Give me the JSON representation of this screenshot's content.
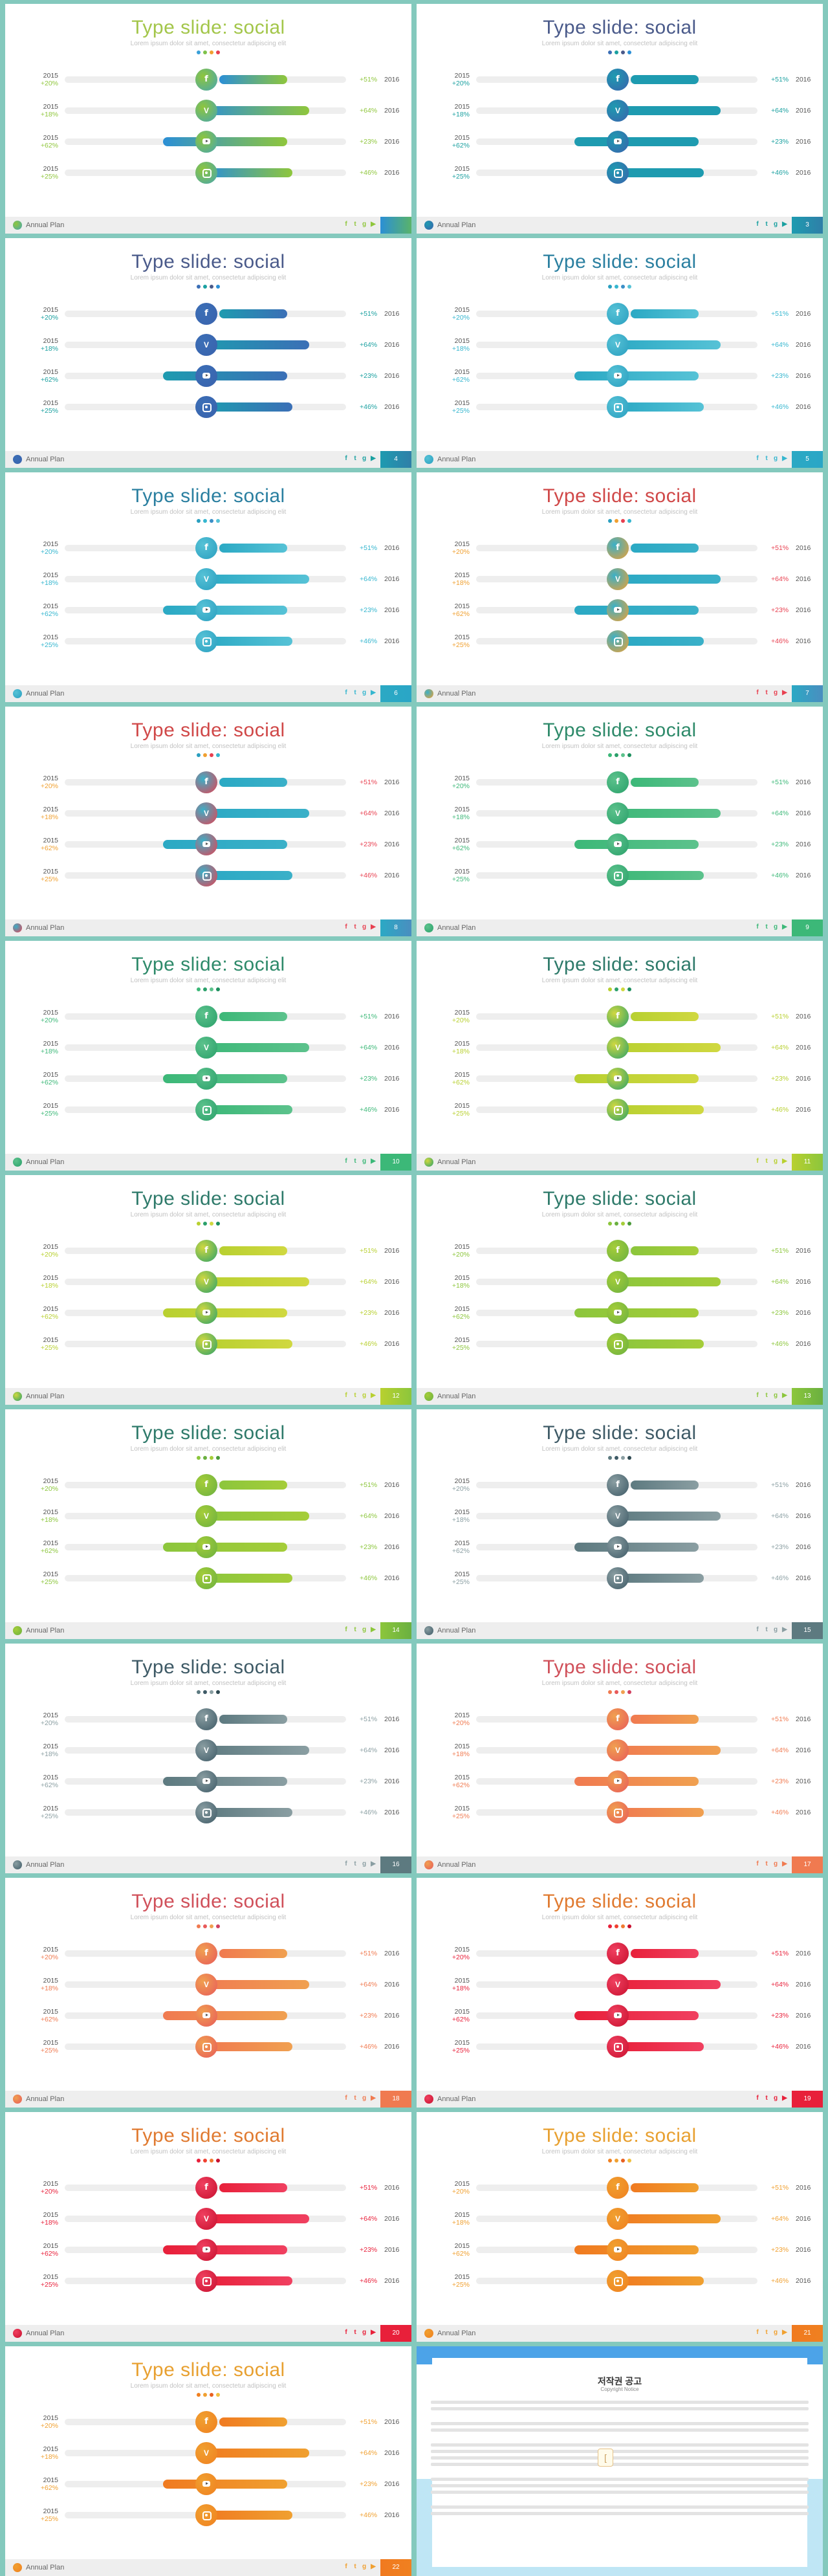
{
  "title": "Type slide: social",
  "subtitle": "Lorem ipsum dolor sit amet, consectetur adipiscing elit",
  "footer_name": "Annual Plan",
  "year_left": "2015",
  "year_right": "2016",
  "rows": [
    {
      "icon": "facebook-icon",
      "glyph": "f",
      "cls": "fb",
      "left_pct": "+20%",
      "right_pct": "+51%",
      "bar_start": 0.55,
      "bar_end": 0.79
    },
    {
      "icon": "vine-icon",
      "glyph": "V",
      "cls": "vn",
      "left_pct": "+18%",
      "right_pct": "+64%",
      "bar_start": 0.48,
      "bar_end": 0.87
    },
    {
      "icon": "youtube-icon",
      "glyph": "",
      "cls": "yt",
      "left_pct": "+62%",
      "right_pct": "+23%",
      "bar_start": 0.35,
      "bar_end": 0.79
    },
    {
      "icon": "instagram-icon",
      "glyph": "",
      "cls": "ig",
      "left_pct": "+25%",
      "right_pct": "+46%",
      "bar_start": 0.5,
      "bar_end": 0.81
    }
  ],
  "footer_icons": [
    {
      "name": "facebook-icon",
      "glyph": "f"
    },
    {
      "name": "twitter-icon",
      "glyph": "t"
    },
    {
      "name": "google-plus-icon",
      "glyph": "g"
    },
    {
      "name": "youtube-icon",
      "glyph": "▶"
    }
  ],
  "slides": [
    {
      "page": "",
      "title_color": "#a3c64a",
      "dots": [
        "#3aa0d8",
        "#7ec24a",
        "#f0a030",
        "#e84050"
      ],
      "bar_a": "#2b8fd6",
      "bar_b": "#8fc63c",
      "circ": "#46a6b0",
      "pct_l": "#8fc63c",
      "pct_r": "#8fc63c",
      "accent": "#59b36a"
    },
    {
      "page": "3",
      "title_color": "#4a5a8a",
      "dots": [
        "#3b6fb6",
        "#1aa0a0",
        "#4a5a8a",
        "#2b8fd6"
      ],
      "bar_a": "#1e9bb0",
      "bar_b": "#1e9bb0",
      "circ": "#3a62ad",
      "pct_l": "#1aa0a0",
      "pct_r": "#1aa0a0",
      "accent": "#2f7fa8"
    },
    {
      "page": "4",
      "title_color": "#4a5a8a",
      "dots": [
        "#3b6fb6",
        "#1aa0a0",
        "#4a5a8a",
        "#2b8fd6"
      ],
      "bar_a": "#1e9bb0",
      "bar_b": "#3b6fb6",
      "circ": "#3a62ad",
      "pct_l": "#1aa0a0",
      "pct_r": "#1aa0a0",
      "accent": "#2f7fa8"
    },
    {
      "page": "5",
      "title_color": "#2a7fa0",
      "dots": [
        "#2a9fc0",
        "#35b6cf",
        "#3b8fc7",
        "#56c2d6"
      ],
      "bar_a": "#2ba9c4",
      "bar_b": "#56c2d6",
      "circ": "#2a9fc0",
      "pct_l": "#35b6cf",
      "pct_r": "#35b6cf",
      "accent": "#2aa6c6"
    },
    {
      "page": "6",
      "title_color": "#2a7fa0",
      "dots": [
        "#2a9fc0",
        "#35b6cf",
        "#3b8fc7",
        "#56c2d6"
      ],
      "bar_a": "#2ba9c4",
      "bar_b": "#56c2d6",
      "circ": "#2a9fc0",
      "pct_l": "#35b6cf",
      "pct_r": "#35b6cf",
      "accent": "#2aa6c6"
    },
    {
      "page": "7",
      "title_color": "#d04848",
      "dots": [
        "#2a9fc0",
        "#f0a030",
        "#e84050",
        "#35b6cf"
      ],
      "bar_a": "#2ba9c4",
      "bar_b": "#3ab0c8",
      "circ": "#f0a030",
      "pct_l": "#f0a030",
      "pct_r": "#e84050",
      "accent": "#4a8ec0"
    },
    {
      "page": "8",
      "title_color": "#d04848",
      "dots": [
        "#2a9fc0",
        "#f0a030",
        "#e84050",
        "#35b6cf"
      ],
      "bar_a": "#2ba9c4",
      "bar_b": "#3ab0c8",
      "circ": "#e84050",
      "pct_l": "#f0a030",
      "pct_r": "#e84050",
      "accent": "#4a8ec0"
    },
    {
      "page": "9",
      "title_color": "#2e8a6a",
      "dots": [
        "#3cb878",
        "#2aa06a",
        "#5cc28c",
        "#1d8f5e"
      ],
      "bar_a": "#3cb878",
      "bar_b": "#5cc28c",
      "circ": "#2aa06a",
      "pct_l": "#3cb878",
      "pct_r": "#3cb878",
      "accent": "#3cb878"
    },
    {
      "page": "10",
      "title_color": "#2e8a6a",
      "dots": [
        "#3cb878",
        "#2aa06a",
        "#5cc28c",
        "#1d8f5e"
      ],
      "bar_a": "#3cb878",
      "bar_b": "#5cc28c",
      "circ": "#2aa06a",
      "pct_l": "#3cb878",
      "pct_r": "#3cb878",
      "accent": "#3cb878"
    },
    {
      "page": "11",
      "title_color": "#2e7a6a",
      "dots": [
        "#b8d030",
        "#2aa06a",
        "#d0d840",
        "#1d8f5e"
      ],
      "bar_a": "#b8d030",
      "bar_b": "#d0d840",
      "circ": "#2aa06a",
      "pct_l": "#b8d030",
      "pct_r": "#b8d030",
      "accent": "#8cc63c"
    },
    {
      "page": "12",
      "title_color": "#2e7a6a",
      "dots": [
        "#b8d030",
        "#2aa06a",
        "#d0d840",
        "#1d8f5e"
      ],
      "bar_a": "#b8d030",
      "bar_b": "#d0d840",
      "circ": "#2aa06a",
      "pct_l": "#b8d030",
      "pct_r": "#b8d030",
      "accent": "#8cc63c"
    },
    {
      "page": "13",
      "title_color": "#2e7a6a",
      "dots": [
        "#8cc63c",
        "#6ab040",
        "#a5cd39",
        "#4a9a3a"
      ],
      "bar_a": "#8cc63c",
      "bar_b": "#a5cd39",
      "circ": "#6ab040",
      "pct_l": "#8cc63c",
      "pct_r": "#8cc63c",
      "accent": "#6ab040"
    },
    {
      "page": "14",
      "title_color": "#2e7a6a",
      "dots": [
        "#8cc63c",
        "#6ab040",
        "#a5cd39",
        "#4a9a3a"
      ],
      "bar_a": "#8cc63c",
      "bar_b": "#a5cd39",
      "circ": "#6ab040",
      "pct_l": "#8cc63c",
      "pct_r": "#8cc63c",
      "accent": "#6ab040"
    },
    {
      "page": "15",
      "title_color": "#3e5a66",
      "dots": [
        "#5d7a80",
        "#3e5a66",
        "#8a9ea2",
        "#2f4a52"
      ],
      "bar_a": "#5d7a80",
      "bar_b": "#8a9ea2",
      "circ": "#3e5a66",
      "pct_l": "#8a9ea2",
      "pct_r": "#8a9ea2",
      "accent": "#5d7a80"
    },
    {
      "page": "16",
      "title_color": "#3e5a66",
      "dots": [
        "#5d7a80",
        "#3e5a66",
        "#8a9ea2",
        "#2f4a52"
      ],
      "bar_a": "#5d7a80",
      "bar_b": "#8a9ea2",
      "circ": "#3e5a66",
      "pct_l": "#8a9ea2",
      "pct_r": "#8a9ea2",
      "accent": "#5d7a80"
    },
    {
      "page": "17",
      "title_color": "#d0505a",
      "dots": [
        "#f07a50",
        "#e85a5a",
        "#f0a050",
        "#d04060"
      ],
      "bar_a": "#f07a50",
      "bar_b": "#f0a050",
      "circ": "#e85a5a",
      "pct_l": "#f07a50",
      "pct_r": "#f07a50",
      "accent": "#f07a50"
    },
    {
      "page": "18",
      "title_color": "#d0505a",
      "dots": [
        "#f07a50",
        "#e85a5a",
        "#f0a050",
        "#d04060"
      ],
      "bar_a": "#f07a50",
      "bar_b": "#f0a050",
      "circ": "#e85a5a",
      "pct_l": "#f07a50",
      "pct_r": "#f07a50",
      "accent": "#f07a50"
    },
    {
      "page": "19",
      "title_color": "#e07a30",
      "dots": [
        "#e8203a",
        "#f04030",
        "#f07a30",
        "#c8102e"
      ],
      "bar_a": "#e8203a",
      "bar_b": "#f04060",
      "circ": "#c8102e",
      "pct_l": "#e8203a",
      "pct_r": "#e8203a",
      "accent": "#e8203a"
    },
    {
      "page": "20",
      "title_color": "#e07a30",
      "dots": [
        "#e8203a",
        "#f04030",
        "#f07a30",
        "#c8102e"
      ],
      "bar_a": "#e8203a",
      "bar_b": "#f04060",
      "circ": "#c8102e",
      "pct_l": "#e8203a",
      "pct_r": "#e8203a",
      "accent": "#e8203a"
    },
    {
      "page": "21",
      "title_color": "#e8a030",
      "dots": [
        "#f08020",
        "#f0a030",
        "#e86020",
        "#f0c040"
      ],
      "bar_a": "#f07a20",
      "bar_b": "#f0a030",
      "circ": "#f08020",
      "pct_l": "#f0a030",
      "pct_r": "#f0a030",
      "accent": "#f08020"
    },
    {
      "page": "22",
      "title_color": "#e8a030",
      "dots": [
        "#f08020",
        "#f0a030",
        "#e86020",
        "#f0c040"
      ],
      "bar_a": "#f07a20",
      "bar_b": "#f0a030",
      "circ": "#f08020",
      "pct_l": "#f0a030",
      "pct_r": "#f0a030",
      "accent": "#f08020"
    }
  ],
  "copyright": {
    "title": "저작권 공고",
    "subtitle": "Copyright Notice"
  }
}
